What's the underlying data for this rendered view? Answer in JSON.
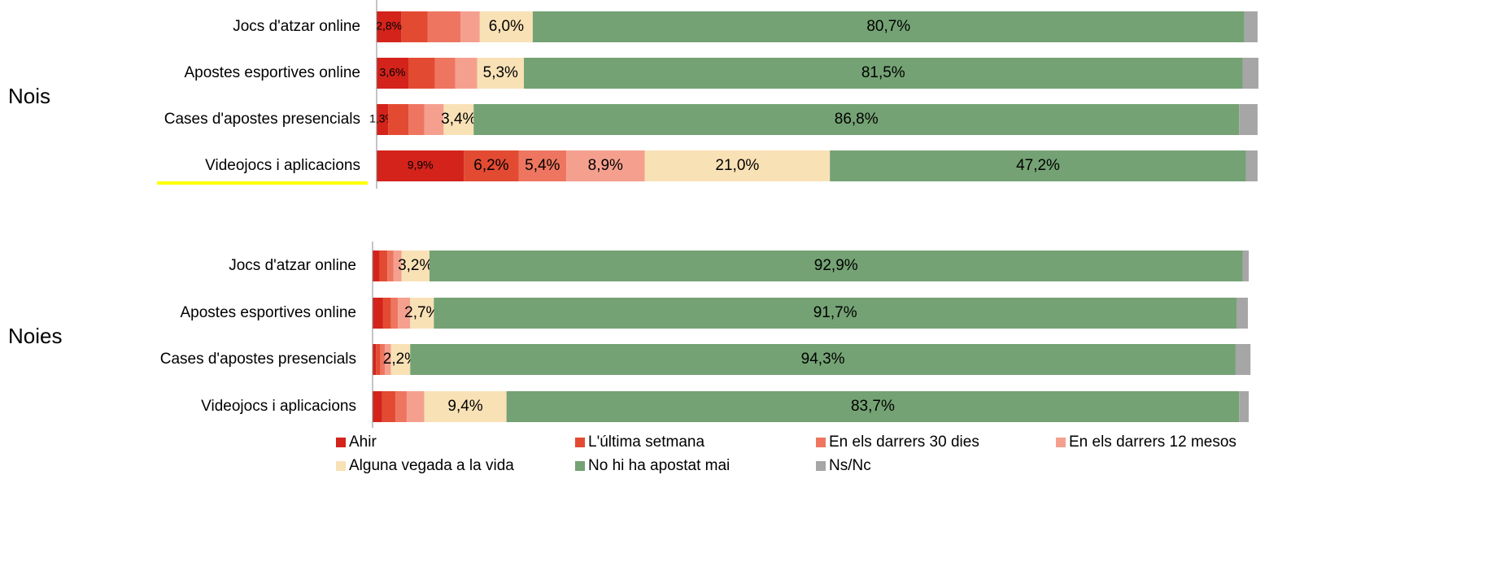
{
  "chart_data": {
    "type": "bar",
    "orientation": "horizontal",
    "stacked": true,
    "xlim": [
      0,
      100
    ],
    "groups": [
      {
        "name": "Nois",
        "categories": [
          "Jocs d'atzar online",
          "Apostes esportives online",
          "Cases d'apostes presencials",
          "Videojocs i aplicacions"
        ]
      },
      {
        "name": "Noies",
        "categories": [
          "Jocs d'atzar online",
          "Apostes esportives online",
          "Cases d'apostes presencials",
          "Videojocs i aplicacions"
        ]
      }
    ],
    "series": [
      {
        "name": "Ahir",
        "color": "#d3231b",
        "values": [
          [
            2.8,
            3.6,
            1.3,
            9.9
          ],
          [
            0.8,
            1.2,
            0.4,
            1.1
          ]
        ],
        "value_labels": [
          [
            "2,8%",
            "3,6%",
            "1,3%",
            "9,9%"
          ],
          [
            null,
            null,
            null,
            null
          ]
        ]
      },
      {
        "name": "L'última setmana",
        "color": "#e24b32",
        "values": [
          [
            3.0,
            3.0,
            2.3,
            6.2
          ],
          [
            0.9,
            0.9,
            0.5,
            1.5
          ]
        ],
        "value_labels": [
          [
            null,
            null,
            null,
            "6,2%"
          ],
          [
            null,
            null,
            null,
            null
          ]
        ]
      },
      {
        "name": "En els darrers 30 dies",
        "color": "#ee7661",
        "values": [
          [
            3.7,
            2.3,
            1.8,
            5.4
          ],
          [
            0.7,
            0.8,
            0.5,
            1.3
          ]
        ],
        "value_labels": [
          [
            null,
            null,
            null,
            "5,4%"
          ],
          [
            null,
            null,
            null,
            null
          ]
        ]
      },
      {
        "name": "En els darrers 12 mesos",
        "color": "#f5a08f",
        "values": [
          [
            2.2,
            2.5,
            2.2,
            8.9
          ],
          [
            0.9,
            1.4,
            0.7,
            2.0
          ]
        ],
        "value_labels": [
          [
            null,
            null,
            null,
            "8,9%"
          ],
          [
            null,
            null,
            null,
            null
          ]
        ]
      },
      {
        "name": "Alguna vegada a la vida",
        "color": "#f9e1b6",
        "values": [
          [
            6.0,
            5.3,
            3.4,
            21.0
          ],
          [
            3.2,
            2.7,
            2.2,
            9.4
          ]
        ],
        "value_labels": [
          [
            "6,0%",
            "5,3%",
            "3,4%",
            "21,0%"
          ],
          [
            "3,2%",
            "2,7%",
            "2,2%",
            "9,4%"
          ]
        ]
      },
      {
        "name": "No hi ha apostat mai",
        "color": "#74a274",
        "values": [
          [
            80.7,
            81.5,
            86.8,
            47.2
          ],
          [
            92.9,
            91.7,
            94.3,
            83.7
          ]
        ],
        "value_labels": [
          [
            "80,7%",
            "81,5%",
            "86,8%",
            "47,2%"
          ],
          [
            "92,9%",
            "91,7%",
            "94,3%",
            "83,7%"
          ]
        ]
      },
      {
        "name": "Ns/Nc",
        "color": "#a6a6a6",
        "values": [
          [
            1.5,
            1.8,
            2.1,
            1.3
          ],
          [
            0.7,
            1.3,
            1.7,
            1.1
          ]
        ],
        "value_labels": [
          [
            null,
            null,
            null,
            null
          ],
          [
            null,
            null,
            null,
            null
          ]
        ]
      }
    ]
  }
}
